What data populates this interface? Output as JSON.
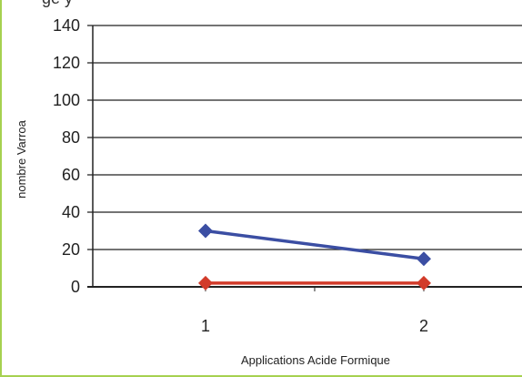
{
  "title_fragment": "ge    y",
  "chart_data": {
    "type": "line",
    "title": "",
    "xlabel": "Applications Acide Formique",
    "ylabel": "nombre Varroa",
    "categories": [
      "1",
      "2"
    ],
    "ylim": [
      0,
      140
    ],
    "yticks": [
      0,
      20,
      40,
      60,
      80,
      100,
      120,
      140
    ],
    "grid": true,
    "series": [
      {
        "color": "#3b4ea3",
        "marker": "diamond",
        "values": [
          30,
          15
        ]
      },
      {
        "color": "#d23b2a",
        "marker": "diamond",
        "values": [
          2,
          2
        ]
      }
    ]
  },
  "colors": {
    "frame_border": "#a6d150",
    "gridline": "#222222"
  }
}
